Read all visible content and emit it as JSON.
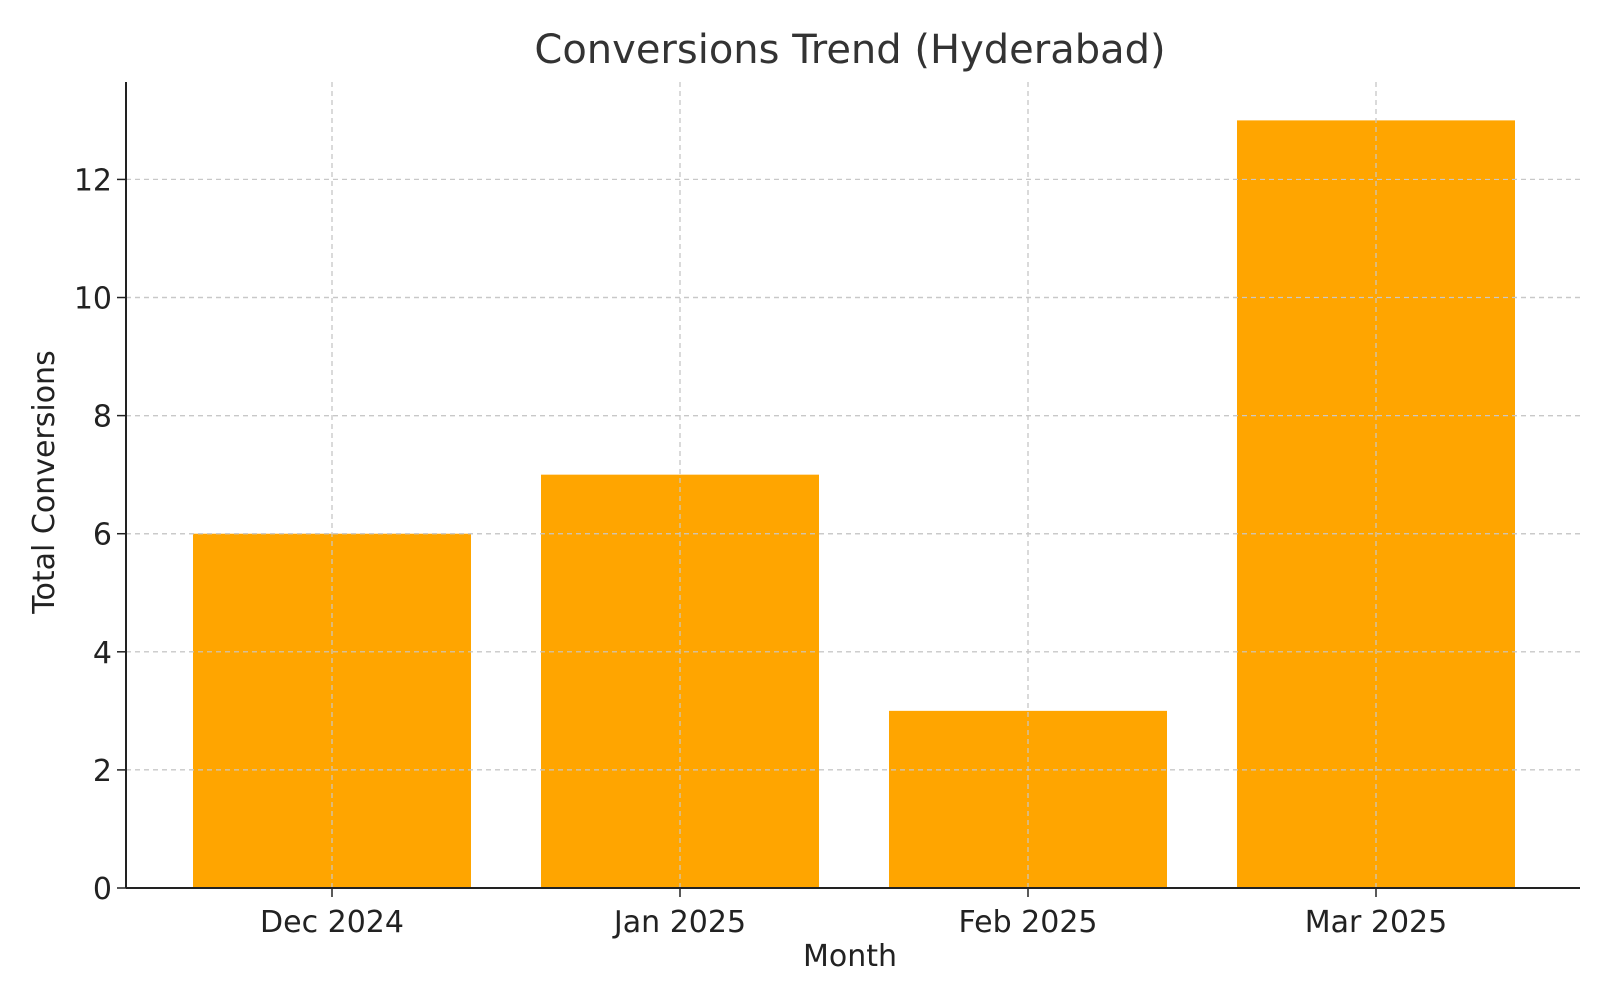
{
  "chart_data": {
    "type": "bar",
    "title": "Conversions Trend (Hyderabad)",
    "xlabel": "Month",
    "ylabel": "Total Conversions",
    "categories": [
      "Dec 2024",
      "Jan 2025",
      "Feb 2025",
      "Mar 2025"
    ],
    "values": [
      6,
      7,
      3,
      13
    ],
    "ylim": [
      0,
      13.65
    ],
    "yticks": [
      0,
      2,
      4,
      6,
      8,
      10,
      12
    ],
    "grid": true,
    "bar_color": "#FFA500"
  }
}
